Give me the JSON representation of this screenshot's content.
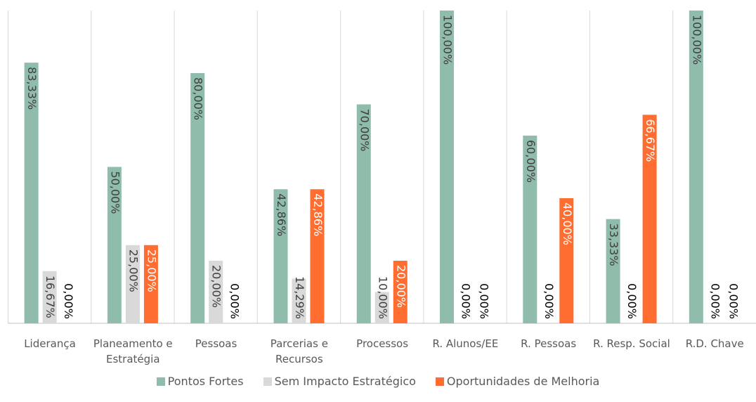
{
  "chart_data": {
    "type": "bar",
    "categories": [
      "Liderança",
      "Planeamento e Estratégia",
      "Pessoas",
      "Parcerias e Recursos",
      "Processos",
      "R. Alunos/EE",
      "R. Pessoas",
      "R. Resp. Social",
      "R.D. Chave"
    ],
    "series": [
      {
        "name": "Pontos Fortes",
        "color": "#8fbcab",
        "values": [
          83.33,
          50,
          80,
          42.86,
          70,
          100,
          60,
          33.33,
          100
        ],
        "value_labels": [
          "83,33%",
          "50,00%",
          "80,00%",
          "42,86%",
          "70,00%",
          "100,00%",
          "60,00%",
          "33,33%",
          "100,00%"
        ]
      },
      {
        "name": "Sem Impacto Estratégico",
        "color": "#d9d9d9",
        "values": [
          16.67,
          25,
          20,
          14.29,
          10,
          0,
          0,
          0,
          0
        ],
        "value_labels": [
          "16,67%",
          "25,00%",
          "20,00%",
          "14,29%",
          "10,00%",
          "0,00%",
          "0,00%",
          "0,00%",
          "0,00%"
        ]
      },
      {
        "name": "Oportunidades de Melhoria",
        "color": "#ff6d31",
        "values": [
          0,
          25,
          0,
          42.86,
          20,
          0,
          40,
          66.67,
          0
        ],
        "value_labels": [
          "0,00%",
          "25,00%",
          "0,00%",
          "42,86%",
          "20,00%",
          "0,00%",
          "40,00%",
          "66,67%",
          "0,00%"
        ]
      }
    ],
    "ylim": [
      0,
      100
    ],
    "legend": "bottom"
  }
}
